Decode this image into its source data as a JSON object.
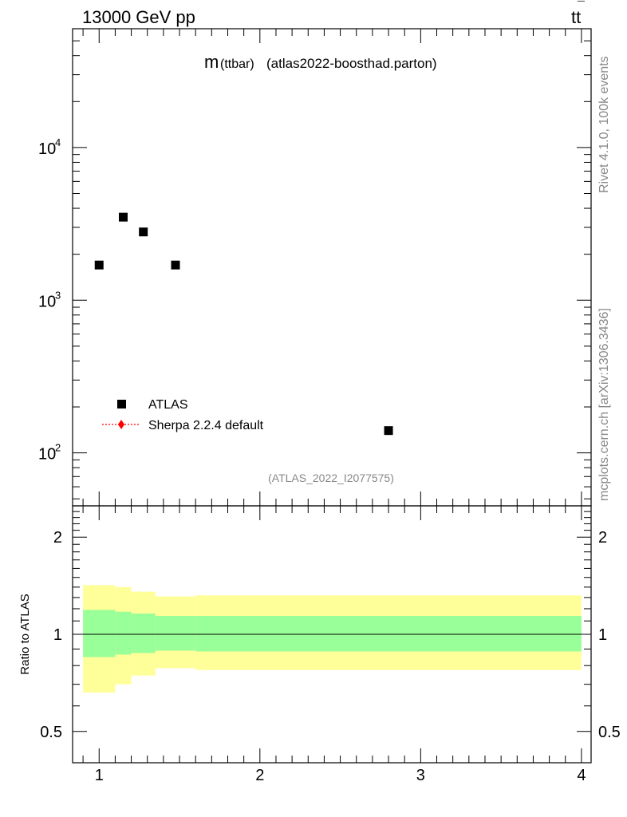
{
  "header": {
    "beam": "13000 GeV pp",
    "process_main": "tt",
    "process_bar": "¯"
  },
  "side_labels": {
    "rivet": "Rivet 4.1.0,  100k events",
    "mcplots": "mcplots.cern.ch [arXiv:1306.3436]"
  },
  "colors": {
    "data_marker": "#000000",
    "mc_line": "#ff0000",
    "band_stat": "#99ff99",
    "band_total": "#ffff99"
  },
  "chart_data": [
    {
      "type": "scatter",
      "title": "m",
      "title_sub": "(ttbar)",
      "title_rest": "(atlas2022-boosthad.parton)",
      "watermark": "(ATLAS_2022_I2077575)",
      "xlim": [
        0.835,
        4.06
      ],
      "ylim": [
        45,
        60000
      ],
      "yscale": "log",
      "yticks": [
        {
          "value": 100,
          "base": "10",
          "exp": "2"
        },
        {
          "value": 1000,
          "base": "10",
          "exp": "3"
        },
        {
          "value": 10000,
          "base": "10",
          "exp": "4"
        }
      ],
      "series": [
        {
          "name": "ATLAS",
          "marker": "square",
          "points": [
            {
              "x": 1.0,
              "y": 1700
            },
            {
              "x": 1.15,
              "y": 3500
            },
            {
              "x": 1.275,
              "y": 2800
            },
            {
              "x": 1.475,
              "y": 1700
            },
            {
              "x": 2.8,
              "y": 140
            }
          ]
        }
      ],
      "legend": [
        {
          "label": "ATLAS",
          "style": "square"
        },
        {
          "label": "Sherpa 2.2.4 default",
          "style": "red-dotted-diamond"
        }
      ]
    },
    {
      "type": "area",
      "ylabel": "Ratio to ATLAS",
      "xlim": [
        0.835,
        4.06
      ],
      "ylim": [
        0.4,
        2.5
      ],
      "yscale": "log",
      "yticks": [
        {
          "value": 0.5,
          "label": "0.5"
        },
        {
          "value": 1,
          "label": "1"
        },
        {
          "value": 2,
          "label": "2"
        }
      ],
      "xticks": [
        {
          "value": 1,
          "label": "1"
        },
        {
          "value": 2,
          "label": "2"
        },
        {
          "value": 3,
          "label": "3"
        },
        {
          "value": 4,
          "label": "4"
        }
      ],
      "reference_line": 1,
      "bins": [
        {
          "xlo": 0.9,
          "xhi": 1.1,
          "stat_lo": 0.85,
          "stat_hi": 1.19,
          "tot_lo": 0.66,
          "tot_hi": 1.42
        },
        {
          "xlo": 1.1,
          "xhi": 1.2,
          "stat_lo": 0.865,
          "stat_hi": 1.175,
          "tot_lo": 0.7,
          "tot_hi": 1.4
        },
        {
          "xlo": 1.2,
          "xhi": 1.35,
          "stat_lo": 0.875,
          "stat_hi": 1.16,
          "tot_lo": 0.745,
          "tot_hi": 1.355
        },
        {
          "xlo": 1.35,
          "xhi": 1.6,
          "stat_lo": 0.89,
          "stat_hi": 1.14,
          "tot_lo": 0.785,
          "tot_hi": 1.31
        },
        {
          "xlo": 1.6,
          "xhi": 4.0,
          "stat_lo": 0.885,
          "stat_hi": 1.14,
          "tot_lo": 0.775,
          "tot_hi": 1.32
        }
      ]
    }
  ]
}
